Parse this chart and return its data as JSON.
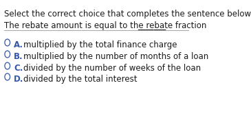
{
  "background_color": "#ffffff",
  "instruction": "Select the correct choice that completes the sentence below.",
  "sentence": "The rebate amount is equal to the rebate fraction _______.",
  "options": [
    {
      "letter": "A.",
      "text": "multiplied by the total finance charge"
    },
    {
      "letter": "B.",
      "text": "multiplied by the number of months of a loan"
    },
    {
      "letter": "C.",
      "text": "divided by the number of weeks of the loan"
    },
    {
      "letter": "D.",
      "text": "divided by the total interest"
    }
  ],
  "instruction_color": "#1a1a1a",
  "sentence_color": "#1a1a1a",
  "letter_color": "#3355aa",
  "option_text_color": "#1a1a1a",
  "circle_color": "#3355aa",
  "divider_color": "#aaaaaa",
  "instruction_fontsize": 8.5,
  "sentence_fontsize": 8.5,
  "option_fontsize": 8.5
}
